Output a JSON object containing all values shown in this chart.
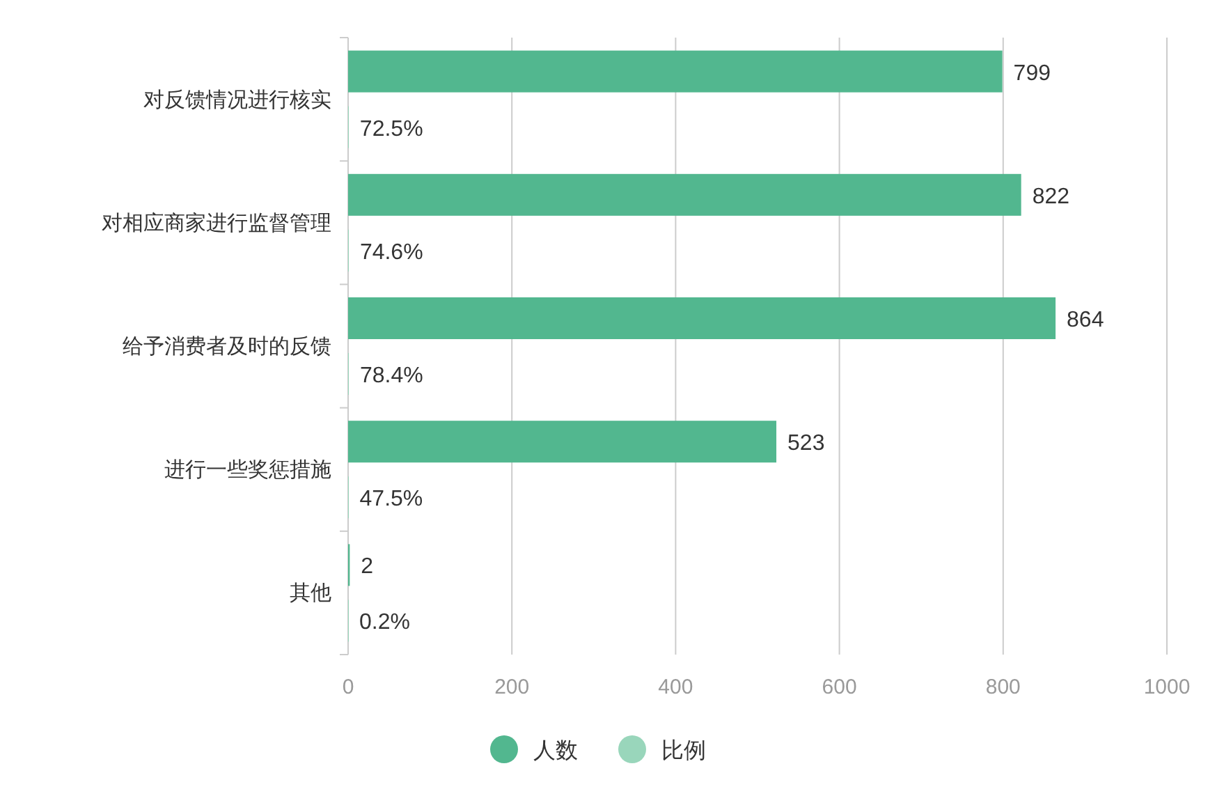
{
  "chart_data": {
    "type": "bar",
    "orientation": "horizontal",
    "categories": [
      "对反馈情况进行核实",
      "对相应商家进行监督管理",
      "给予消费者及时的反馈",
      "进行一些奖惩措施",
      "其他"
    ],
    "series": [
      {
        "name": "人数",
        "color": "#52b78f",
        "values": [
          799,
          822,
          864,
          523,
          2
        ],
        "value_labels": [
          "799",
          "822",
          "864",
          "523",
          "2"
        ]
      },
      {
        "name": "比例",
        "color": "#99d6bb",
        "values": [
          0.725,
          0.746,
          0.784,
          0.475,
          0.002
        ],
        "value_labels": [
          "72.5%",
          "74.6%",
          "78.4%",
          "47.5%",
          "0.2%"
        ]
      }
    ],
    "xlim": [
      0,
      1000
    ],
    "xticks": [
      0,
      200,
      400,
      600,
      800,
      1000
    ],
    "grid": "x",
    "legend": "bottom"
  }
}
